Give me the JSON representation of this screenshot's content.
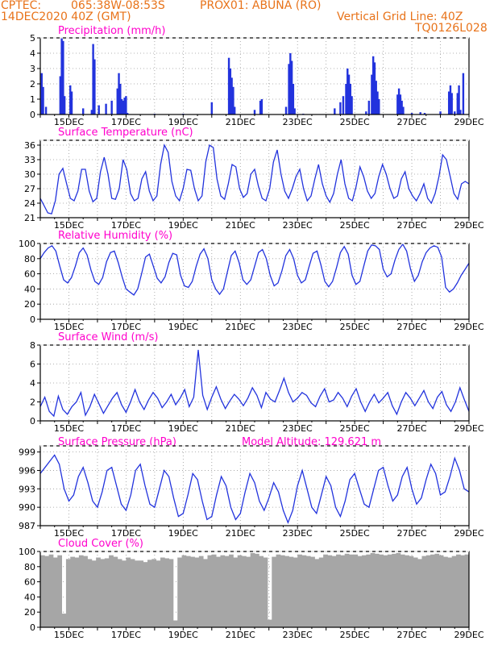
{
  "header": {
    "line1_left": "CPTEC:",
    "line1_coords": "065:38W-08:53S",
    "line1_station": "PROX01: ABUNA (RO)",
    "line2_left": "14DEC2020 40Z (GMT)",
    "line2_right": "Vertical Grid Line: 40Z",
    "line3_right": "TQ0126L028"
  },
  "colors": {
    "header": "#e8731a",
    "title": "#ff00cc",
    "series": "#2233dd",
    "bars": "#2233dd",
    "cloud": "#a6a6a6",
    "grid": "#9a9a9a"
  },
  "x_axis": {
    "tick_labels": [
      "15DEC",
      "17DEC",
      "19DEC",
      "21DEC",
      "23DEC",
      "25DEC",
      "27DEC",
      "29DEC"
    ],
    "start_day": 14.0,
    "end_day": 29.0
  },
  "chart_data": [
    {
      "type": "bar",
      "title": "Precipitation (mm/h)",
      "ylim": [
        0,
        5
      ],
      "yticks": [
        "0",
        "1",
        "2",
        "3",
        "4",
        "5"
      ],
      "points": [
        [
          14.05,
          2.7
        ],
        [
          14.1,
          1.8
        ],
        [
          14.2,
          0.5
        ],
        [
          14.7,
          2.5
        ],
        [
          14.75,
          5.0
        ],
        [
          14.8,
          4.8
        ],
        [
          14.85,
          1.2
        ],
        [
          15.05,
          1.9
        ],
        [
          15.1,
          1.5
        ],
        [
          15.5,
          0.4
        ],
        [
          15.8,
          0.3
        ],
        [
          15.85,
          4.6
        ],
        [
          15.9,
          3.6
        ],
        [
          16.05,
          0.6
        ],
        [
          16.3,
          0.7
        ],
        [
          16.5,
          0.9
        ],
        [
          16.7,
          1.7
        ],
        [
          16.75,
          2.7
        ],
        [
          16.8,
          2.0
        ],
        [
          16.85,
          1.0
        ],
        [
          16.9,
          0.9
        ],
        [
          16.95,
          1.1
        ],
        [
          17.0,
          1.2
        ],
        [
          17.05,
          0.1
        ],
        [
          18.0,
          0.05
        ],
        [
          19.0,
          0.05
        ],
        [
          20.0,
          0.8
        ],
        [
          20.6,
          3.7
        ],
        [
          20.65,
          3.0
        ],
        [
          20.7,
          2.4
        ],
        [
          20.75,
          1.8
        ],
        [
          20.8,
          0.5
        ],
        [
          21.5,
          0.3
        ],
        [
          21.7,
          0.9
        ],
        [
          21.75,
          1.0
        ],
        [
          22.6,
          0.5
        ],
        [
          22.7,
          3.3
        ],
        [
          22.75,
          4.0
        ],
        [
          22.8,
          3.5
        ],
        [
          22.85,
          2.0
        ],
        [
          22.9,
          0.4
        ],
        [
          23.2,
          0.05
        ],
        [
          24.3,
          0.4
        ],
        [
          24.5,
          0.8
        ],
        [
          24.6,
          1.2
        ],
        [
          24.7,
          2.0
        ],
        [
          24.75,
          3.0
        ],
        [
          24.8,
          2.6
        ],
        [
          24.85,
          2.0
        ],
        [
          24.9,
          1.2
        ],
        [
          25.4,
          0.2
        ],
        [
          25.5,
          0.9
        ],
        [
          25.6,
          2.6
        ],
        [
          25.65,
          3.8
        ],
        [
          25.7,
          3.4
        ],
        [
          25.75,
          2.2
        ],
        [
          25.8,
          1.5
        ],
        [
          25.85,
          1.0
        ],
        [
          26.5,
          1.3
        ],
        [
          26.55,
          1.7
        ],
        [
          26.6,
          1.3
        ],
        [
          26.65,
          0.9
        ],
        [
          26.7,
          0.5
        ],
        [
          27.0,
          0.1
        ],
        [
          27.3,
          0.15
        ],
        [
          27.45,
          0.1
        ],
        [
          28.0,
          0.2
        ],
        [
          28.3,
          1.5
        ],
        [
          28.35,
          1.9
        ],
        [
          28.4,
          1.4
        ],
        [
          28.5,
          0.2
        ],
        [
          28.6,
          1.4
        ],
        [
          28.65,
          1.9
        ],
        [
          28.7,
          0.3
        ],
        [
          28.8,
          2.7
        ]
      ]
    },
    {
      "type": "line",
      "title": "Surface Temperature (nC)",
      "ylim": [
        21,
        37
      ],
      "yticks": [
        "21",
        "24",
        "27",
        "30",
        "33",
        "36"
      ],
      "values": [
        25.0,
        23.5,
        22.0,
        21.8,
        24.5,
        30.0,
        31.2,
        28.0,
        25.0,
        24.5,
        26.5,
        31.0,
        31.0,
        26.5,
        24.3,
        25.0,
        30.5,
        33.5,
        30.0,
        25.0,
        24.8,
        27.0,
        33.0,
        31.0,
        26.0,
        24.5,
        25.0,
        29.0,
        30.5,
        26.5,
        24.5,
        25.5,
        32.0,
        36.0,
        34.5,
        28.5,
        25.5,
        24.5,
        27.0,
        31.0,
        30.8,
        27.0,
        24.5,
        25.5,
        32.5,
        36.0,
        35.5,
        29.0,
        25.5,
        24.8,
        28.0,
        32.0,
        31.5,
        27.0,
        25.2,
        26.0,
        30.0,
        31.0,
        27.5,
        25.0,
        24.5,
        27.0,
        32.5,
        35.0,
        30.0,
        26.5,
        25.0,
        27.0,
        29.5,
        31.0,
        27.0,
        24.5,
        25.5,
        29.0,
        32.0,
        28.0,
        25.5,
        24.2,
        26.0,
        30.0,
        33.0,
        28.0,
        25.0,
        24.5,
        27.5,
        31.5,
        29.5,
        26.5,
        25.0,
        26.0,
        29.5,
        32.0,
        30.0,
        27.0,
        25.0,
        25.5,
        29.0,
        30.5,
        27.0,
        25.5,
        24.5,
        26.0,
        28.0,
        25.0,
        24.0,
        26.0,
        29.5,
        34.0,
        33.0,
        29.5,
        26.0,
        24.8,
        28.0,
        28.5,
        28.0
      ]
    },
    {
      "type": "line",
      "title": "Relative Humidity (%)",
      "ylim": [
        0,
        100
      ],
      "yticks": [
        "0",
        "20",
        "40",
        "60",
        "80",
        "100"
      ],
      "values": [
        80,
        88,
        94,
        97,
        90,
        70,
        52,
        48,
        55,
        70,
        88,
        94,
        85,
        65,
        50,
        46,
        55,
        76,
        88,
        90,
        75,
        56,
        40,
        36,
        32,
        40,
        60,
        82,
        86,
        70,
        54,
        48,
        56,
        75,
        87,
        85,
        58,
        44,
        42,
        50,
        70,
        86,
        93,
        80,
        52,
        40,
        33,
        40,
        62,
        84,
        90,
        75,
        52,
        46,
        52,
        70,
        88,
        92,
        80,
        58,
        44,
        48,
        64,
        84,
        92,
        80,
        58,
        48,
        52,
        70,
        87,
        90,
        72,
        50,
        43,
        50,
        68,
        88,
        96,
        86,
        58,
        46,
        50,
        70,
        90,
        98,
        97,
        92,
        66,
        56,
        60,
        78,
        92,
        99,
        90,
        66,
        50,
        58,
        76,
        88,
        94,
        97,
        95,
        82,
        42,
        36,
        40,
        48,
        58,
        66,
        74
      ]
    },
    {
      "type": "line",
      "title": "Surface Wind (m/s)",
      "ylim": [
        0,
        8
      ],
      "yticks": [
        "0",
        "2",
        "4",
        "6",
        "8"
      ],
      "values": [
        1.5,
        2.5,
        1.0,
        0.5,
        2.6,
        1.2,
        0.7,
        1.5,
        2.0,
        3.0,
        0.6,
        1.5,
        2.8,
        1.8,
        0.8,
        1.6,
        2.4,
        3.0,
        1.7,
        0.9,
        2.0,
        3.3,
        2.0,
        1.2,
        2.2,
        3.0,
        2.4,
        1.4,
        2.0,
        2.8,
        1.7,
        2.4,
        3.3,
        1.5,
        2.5,
        7.5,
        2.7,
        1.2,
        2.5,
        3.6,
        2.3,
        1.3,
        2.1,
        2.8,
        2.3,
        1.6,
        2.4,
        3.5,
        2.7,
        1.4,
        3.0,
        2.3,
        2.0,
        3.2,
        4.5,
        3.0,
        2.0,
        2.4,
        3.0,
        2.7,
        1.9,
        1.5,
        2.6,
        3.4,
        2.0,
        2.2,
        3.0,
        2.4,
        1.5,
        2.6,
        3.4,
        2.0,
        1.0,
        2.0,
        2.8,
        1.9,
        2.4,
        3.0,
        1.6,
        0.7,
        2.0,
        3.0,
        2.4,
        1.6,
        2.4,
        3.2,
        2.0,
        1.3,
        2.5,
        3.1,
        1.7,
        1.0,
        2.0,
        3.5,
        2.2,
        1.0
      ]
    },
    {
      "type": "line",
      "title": "Surface Pressure (hPa)",
      "annotation": "Model Altitude: 129.621  m",
      "ylim": [
        987,
        1000
      ],
      "yticks": [
        "987",
        "990",
        "993",
        "996",
        "999"
      ],
      "values": [
        995.5,
        996.5,
        997.5,
        998.5,
        997.0,
        993.0,
        991.0,
        992.0,
        995.0,
        996.5,
        994.0,
        991.0,
        990.0,
        992.5,
        996.0,
        996.5,
        993.5,
        990.5,
        989.5,
        992.0,
        996.0,
        997.0,
        993.5,
        990.5,
        990.0,
        993.0,
        996.0,
        995.0,
        991.5,
        988.5,
        989.0,
        992.0,
        995.5,
        994.5,
        991.0,
        988.0,
        988.5,
        992.0,
        995.0,
        993.5,
        990.0,
        988.0,
        989.0,
        992.5,
        995.5,
        994.0,
        991.0,
        989.5,
        991.5,
        994.0,
        992.5,
        989.5,
        987.5,
        989.5,
        993.5,
        996.0,
        993.0,
        990.0,
        989.0,
        992.0,
        995.0,
        993.5,
        990.0,
        988.5,
        991.0,
        994.5,
        995.5,
        993.0,
        990.5,
        990.0,
        993.0,
        996.0,
        996.5,
        993.5,
        991.0,
        992.0,
        995.0,
        996.5,
        993.0,
        990.5,
        991.5,
        994.5,
        997.0,
        995.5,
        992.0,
        992.5,
        995.0,
        998.0,
        996.0,
        993.0,
        992.5
      ]
    },
    {
      "type": "area",
      "title": "Cloud Cover (%)",
      "ylim": [
        0,
        100
      ],
      "yticks": [
        "0",
        "20",
        "40",
        "60",
        "80",
        "100"
      ],
      "values": [
        95,
        94,
        96,
        92,
        95,
        18,
        90,
        93,
        92,
        95,
        94,
        90,
        88,
        92,
        90,
        91,
        95,
        93,
        90,
        88,
        92,
        90,
        88,
        88,
        86,
        89,
        90,
        88,
        92,
        91,
        90,
        9,
        92,
        95,
        94,
        93,
        92,
        94,
        90,
        95,
        96,
        93,
        95,
        94,
        96,
        92,
        95,
        94,
        93,
        98,
        97,
        94,
        92,
        10,
        93,
        96,
        95,
        94,
        93,
        92,
        96,
        95,
        94,
        93,
        90,
        92,
        96,
        95,
        94,
        96,
        95,
        97,
        96,
        96,
        94,
        95,
        96,
        98,
        97,
        96,
        95,
        96,
        97,
        98,
        96,
        95,
        94,
        92,
        90,
        94,
        95,
        96,
        97,
        95,
        93,
        92,
        94,
        96,
        95,
        96
      ]
    }
  ]
}
